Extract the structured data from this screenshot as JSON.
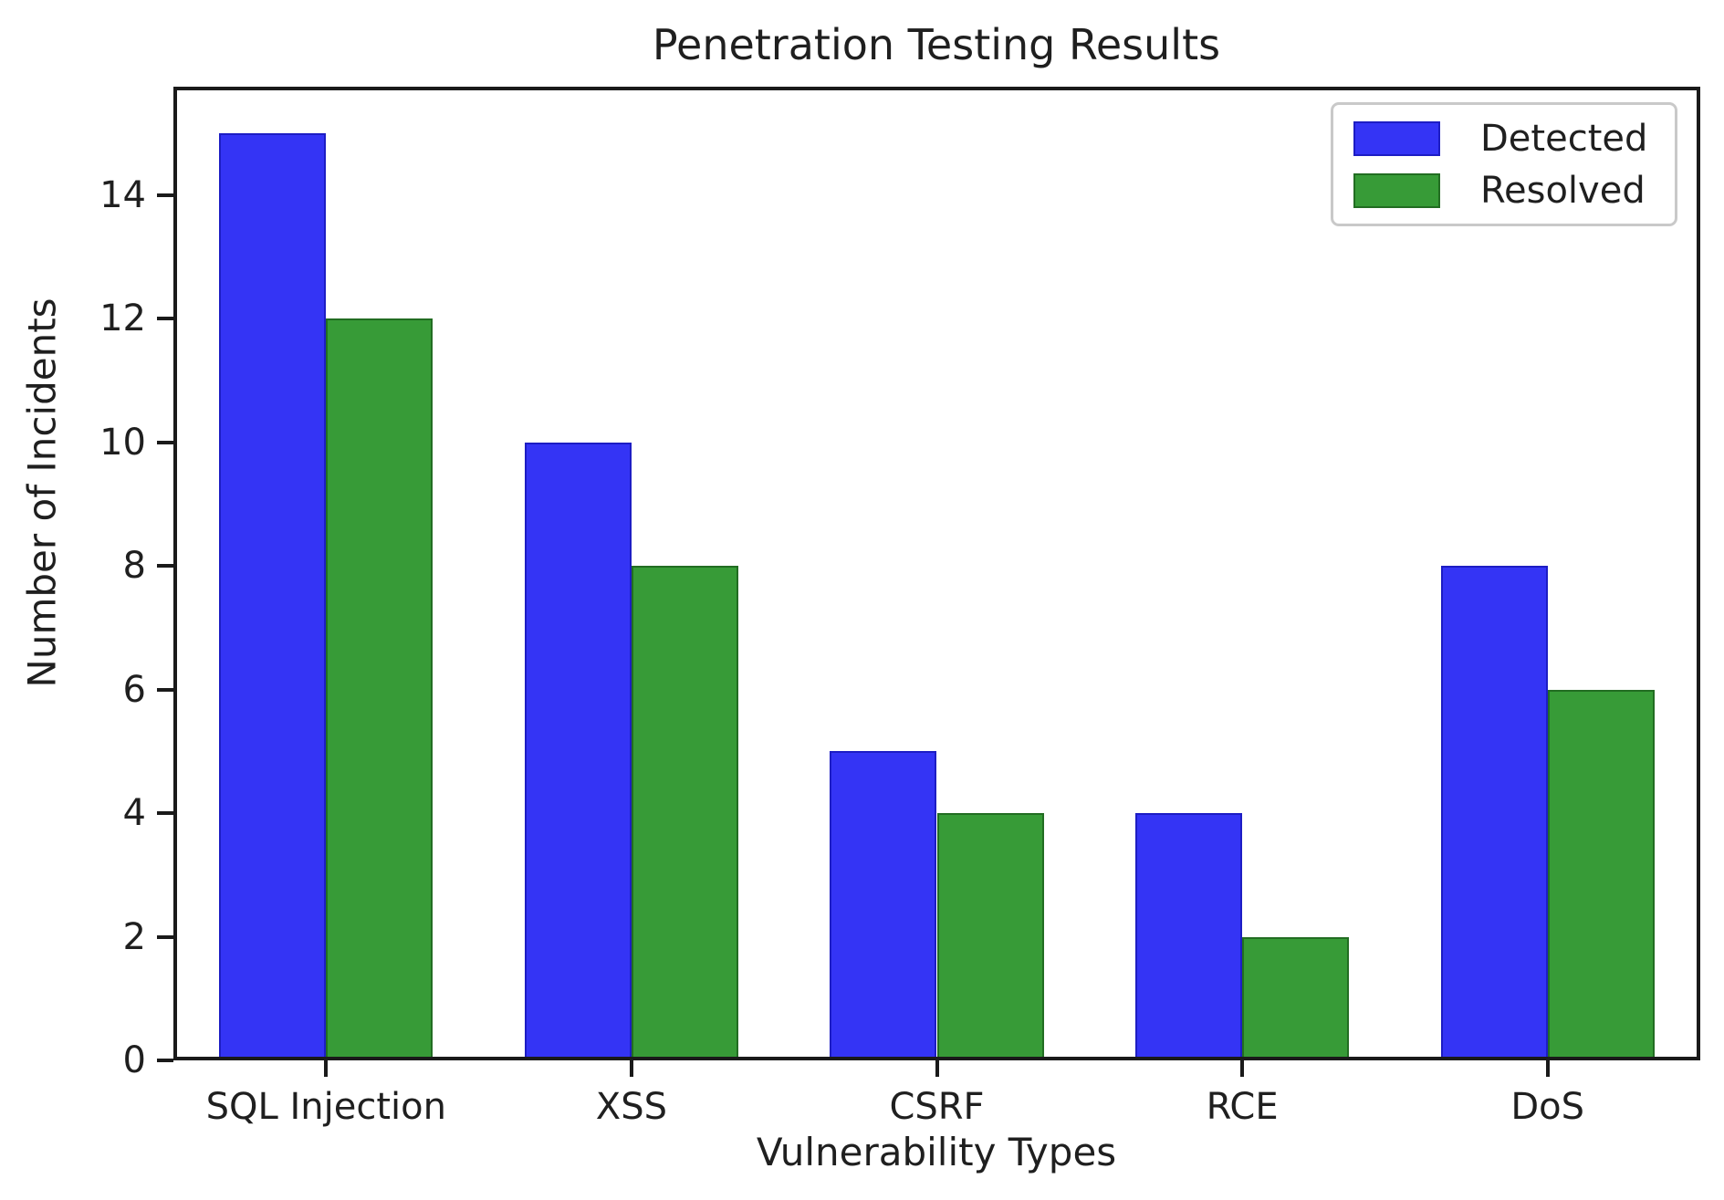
{
  "chart_data": {
    "type": "bar",
    "title": "Penetration Testing Results",
    "xlabel": "Vulnerability Types",
    "ylabel": "Number of Incidents",
    "categories": [
      "SQL Injection",
      "XSS",
      "CSRF",
      "RCE",
      "DoS"
    ],
    "series": [
      {
        "name": "Detected",
        "color": "#3434f5",
        "edge_color": "#1d1dc4",
        "values": [
          15,
          10,
          5,
          4,
          8
        ]
      },
      {
        "name": "Resolved",
        "color": "#379b37",
        "edge_color": "#226d22",
        "values": [
          12,
          8,
          4,
          2,
          6
        ]
      }
    ],
    "ylim": [
      0,
      15.75
    ],
    "yticks": [
      0,
      2,
      4,
      6,
      8,
      10,
      12,
      14
    ],
    "bar_width": 0.35,
    "grid": false,
    "legend_position": "upper right",
    "axis_color": "#1a1a1a",
    "plot_background": "#ffffff"
  }
}
